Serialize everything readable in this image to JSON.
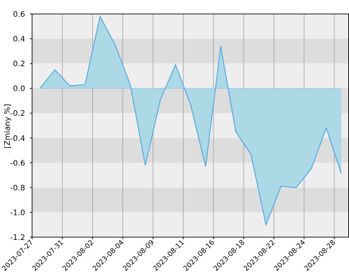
{
  "chart_data": {
    "type": "area",
    "title": "",
    "xlabel": "",
    "ylabel": "[Zmiany %]",
    "ylim": [
      -1.2,
      0.6
    ],
    "y_ticks": [
      0.6,
      0.4,
      0.2,
      0.0,
      -0.2,
      -0.4,
      -0.6,
      -0.8,
      -1.0,
      -1.2
    ],
    "y_tick_labels": [
      "0.6",
      "0.4",
      "0.2",
      "0.0",
      "-0.2",
      "-0.4",
      "-0.6",
      "-0.8",
      "-1.0",
      "-1.2"
    ],
    "x_tick_labels": [
      "2023-07-27",
      "2023-07-31",
      "2023-08-02",
      "2023-08-04",
      "2023-08-09",
      "2023-08-11",
      "2023-08-16",
      "2023-08-18",
      "2023-08-22",
      "2023-08-24",
      "2023-08-28"
    ],
    "series": [
      {
        "values": [
          0.0,
          0.15,
          0.02,
          0.03,
          0.58,
          0.35,
          0.03,
          -0.62,
          -0.09,
          0.19,
          -0.13,
          -0.63,
          0.34,
          -0.35,
          -0.53,
          -1.1,
          -0.79,
          -0.8,
          -0.65,
          -0.32,
          -0.69
        ]
      }
    ],
    "grid": true,
    "colors": {
      "fill": "#add8e6",
      "line": "#4aa3df",
      "band_light": "#eeeeee",
      "band_dark": "#dddddd",
      "grid_line": "#aaaaaa",
      "axis": "#000000"
    }
  }
}
